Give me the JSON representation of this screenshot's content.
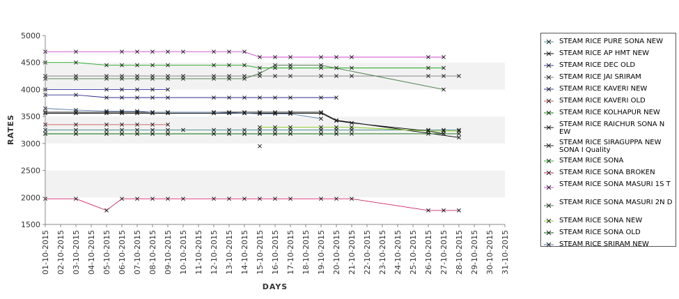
{
  "chart_data": {
    "type": "line",
    "title": "",
    "xlabel": "DAYS",
    "ylabel": "RATES",
    "ylim": [
      1500,
      5000
    ],
    "yticks": [
      "1500",
      "2000",
      "2500",
      "3000",
      "3500",
      "4000",
      "4500",
      "5000"
    ],
    "grid": "alternating horizontal bands",
    "legend": "right",
    "marker": "x",
    "categories": [
      "01-10-2015",
      "02-10-2015",
      "03-10-2015",
      "04-10-2015",
      "05-10-2015",
      "06-10-2015",
      "07-10-2015",
      "08-10-2015",
      "09-10-2015",
      "10-10-2015",
      "11-10-2015",
      "12-10-2015",
      "13-10-2015",
      "14-10-2015",
      "15-10-2015",
      "16-10-2015",
      "17-10-2015",
      "18-10-2015",
      "19-10-2015",
      "20-10-2015",
      "21-10-2015",
      "22-10-2015",
      "23-10-2015",
      "24-10-2015",
      "25-10-2015",
      "26-10-2015",
      "27-10-2015",
      "28-10-2015",
      "29-10-2015",
      "30-10-2015",
      "31-10-2015"
    ],
    "series": [
      {
        "name": " STEAM RICE PURE SONA NEW",
        "color": "#4a8f8f",
        "values": [
          [
            1,
            3250
          ],
          [
            3,
            3250
          ],
          [
            5,
            3250
          ],
          [
            6,
            3250
          ],
          [
            7,
            3250
          ],
          [
            8,
            3250
          ],
          [
            9,
            3250
          ],
          [
            10,
            3250
          ],
          [
            12,
            3250
          ],
          [
            13,
            3250
          ],
          [
            14,
            3250
          ],
          [
            15,
            3250
          ],
          [
            16,
            3250
          ],
          [
            17,
            3250
          ],
          [
            19,
            3250
          ],
          [
            20,
            3250
          ],
          [
            21,
            3250
          ],
          [
            26,
            3250
          ],
          [
            27,
            3250
          ],
          [
            28,
            3250
          ]
        ]
      },
      {
        "name": "STEAM RICE AP HMT NEW",
        "color": "#000000",
        "values": [
          [
            1,
            3580
          ],
          [
            3,
            3580
          ],
          [
            5,
            3580
          ],
          [
            6,
            3580
          ],
          [
            7,
            3580
          ],
          [
            8,
            3580
          ],
          [
            9,
            3580
          ],
          [
            12,
            3580
          ],
          [
            13,
            3580
          ],
          [
            14,
            3580
          ],
          [
            15,
            3580
          ],
          [
            16,
            3580
          ],
          [
            17,
            3580
          ],
          [
            19,
            3580
          ],
          [
            20,
            3430
          ],
          [
            28,
            3110
          ]
        ]
      },
      {
        "name": "STEAM RICE DEC OLD",
        "color": "#3333aa",
        "values": [
          [
            1,
            4000
          ],
          [
            5,
            4000
          ],
          [
            6,
            4000
          ],
          [
            7,
            4000
          ],
          [
            8,
            4000
          ],
          [
            9,
            4000
          ]
        ]
      },
      {
        "name": "STEAM RICE JAI SRIRAM",
        "color": "#777777",
        "values": [
          [
            1,
            4250
          ],
          [
            3,
            4250
          ],
          [
            5,
            4250
          ],
          [
            6,
            4250
          ],
          [
            7,
            4250
          ],
          [
            8,
            4250
          ],
          [
            9,
            4250
          ],
          [
            10,
            4250
          ],
          [
            12,
            4250
          ],
          [
            13,
            4250
          ],
          [
            14,
            4250
          ],
          [
            15,
            4250
          ],
          [
            16,
            4250
          ],
          [
            17,
            4250
          ],
          [
            19,
            4250
          ],
          [
            20,
            4250
          ],
          [
            21,
            4250
          ],
          [
            26,
            4250
          ],
          [
            27,
            4250
          ],
          [
            28,
            4250
          ]
        ]
      },
      {
        "name": "STEAM RICE KAVERI NEW",
        "color": "#2b2b8a",
        "values": [
          [
            1,
            3900
          ],
          [
            3,
            3900
          ],
          [
            5,
            3850
          ],
          [
            6,
            3850
          ],
          [
            7,
            3850
          ],
          [
            8,
            3850
          ],
          [
            9,
            3850
          ],
          [
            12,
            3850
          ],
          [
            13,
            3850
          ],
          [
            14,
            3850
          ],
          [
            15,
            3850
          ],
          [
            16,
            3850
          ],
          [
            17,
            3850
          ],
          [
            19,
            3850
          ],
          [
            20,
            3850
          ]
        ]
      },
      {
        "name": "STEAM RICE KAVERI OLD",
        "color": "#cc5555",
        "values": [
          [
            1,
            3350
          ],
          [
            3,
            3350
          ],
          [
            5,
            3350
          ],
          [
            6,
            3350
          ],
          [
            7,
            3350
          ],
          [
            8,
            3350
          ],
          [
            9,
            3350
          ]
        ]
      },
      {
        "name": "STEAM RICE KOLHAPUR NEW",
        "color": "#008000",
        "values": [
          [
            1,
            3180
          ],
          [
            3,
            3180
          ],
          [
            5,
            3180
          ],
          [
            6,
            3180
          ],
          [
            7,
            3180
          ],
          [
            8,
            3180
          ],
          [
            9,
            3180
          ],
          [
            12,
            3180
          ],
          [
            13,
            3180
          ],
          [
            14,
            3180
          ],
          [
            15,
            3180
          ],
          [
            16,
            3180
          ],
          [
            17,
            3180
          ],
          [
            19,
            3180
          ],
          [
            20,
            3180
          ]
        ]
      },
      {
        "name": "STEAM RICE RAICHUR SONA NEW",
        "color": "#111111",
        "values": [
          [
            1,
            3560
          ],
          [
            3,
            3560
          ],
          [
            5,
            3560
          ],
          [
            6,
            3560
          ],
          [
            7,
            3560
          ],
          [
            8,
            3560
          ],
          [
            9,
            3560
          ],
          [
            12,
            3560
          ],
          [
            13,
            3560
          ],
          [
            14,
            3560
          ],
          [
            15,
            3560
          ],
          [
            16,
            3560
          ],
          [
            17,
            3560
          ],
          [
            19,
            3560
          ],
          [
            20,
            3420
          ],
          [
            21,
            3380
          ],
          [
            26,
            3230
          ],
          [
            27,
            3180
          ]
        ]
      },
      {
        "name": "STEAM RICE SIRAGUPPA NEW SONA I Quality",
        "color": "#222222",
        "values": [
          [
            15,
            2950
          ]
        ]
      },
      {
        "name": "STEAM RICE SONA",
        "color": "#22aa22",
        "values": [
          [
            1,
            4500
          ],
          [
            3,
            4500
          ],
          [
            5,
            4450
          ],
          [
            6,
            4450
          ],
          [
            7,
            4450
          ],
          [
            8,
            4450
          ],
          [
            9,
            4450
          ],
          [
            12,
            4450
          ],
          [
            13,
            4450
          ],
          [
            14,
            4450
          ],
          [
            15,
            4400
          ],
          [
            16,
            4400
          ],
          [
            17,
            4400
          ],
          [
            19,
            4400
          ],
          [
            20,
            4400
          ],
          [
            21,
            4400
          ],
          [
            26,
            4400
          ],
          [
            27,
            4400
          ]
        ]
      },
      {
        "name": "STEAM RICE SONA BROKEN",
        "color": "#cc2266",
        "values": [
          [
            1,
            1975
          ],
          [
            3,
            1975
          ],
          [
            5,
            1760
          ],
          [
            6,
            1975
          ],
          [
            7,
            1975
          ],
          [
            8,
            1975
          ],
          [
            9,
            1975
          ],
          [
            10,
            1975
          ],
          [
            12,
            1975
          ],
          [
            13,
            1975
          ],
          [
            14,
            1975
          ],
          [
            15,
            1975
          ],
          [
            16,
            1975
          ],
          [
            17,
            1975
          ],
          [
            19,
            1975
          ],
          [
            20,
            1975
          ],
          [
            21,
            1975
          ],
          [
            26,
            1760
          ],
          [
            27,
            1760
          ],
          [
            28,
            1760
          ]
        ]
      },
      {
        "name": "STEAM RICE SONA MASURI 1ST",
        "color": "#cc44cc",
        "values": [
          [
            1,
            4700
          ],
          [
            3,
            4700
          ],
          [
            6,
            4700
          ],
          [
            7,
            4700
          ],
          [
            8,
            4700
          ],
          [
            9,
            4700
          ],
          [
            10,
            4700
          ],
          [
            12,
            4700
          ],
          [
            13,
            4700
          ],
          [
            14,
            4700
          ],
          [
            15,
            4600
          ],
          [
            16,
            4600
          ],
          [
            17,
            4600
          ],
          [
            19,
            4600
          ],
          [
            20,
            4600
          ],
          [
            21,
            4600
          ],
          [
            26,
            4600
          ],
          [
            27,
            4600
          ]
        ]
      },
      {
        "name": "STEAM RICE SONA MASURI 2ND",
        "color": "#447744",
        "values": [
          [
            1,
            4200
          ],
          [
            3,
            4200
          ],
          [
            5,
            4200
          ],
          [
            6,
            4200
          ],
          [
            7,
            4200
          ],
          [
            8,
            4200
          ],
          [
            9,
            4200
          ],
          [
            10,
            4200
          ],
          [
            12,
            4200
          ],
          [
            13,
            4200
          ],
          [
            14,
            4200
          ],
          [
            15,
            4300
          ],
          [
            16,
            4450
          ],
          [
            17,
            4450
          ],
          [
            19,
            4450
          ],
          [
            27,
            4000
          ]
        ]
      },
      {
        "name": "STEAM RICE SONA NEW",
        "color": "#88cc22",
        "values": [
          [
            15,
            3300
          ],
          [
            16,
            3300
          ],
          [
            17,
            3300
          ],
          [
            19,
            3300
          ],
          [
            20,
            3300
          ],
          [
            21,
            3300
          ],
          [
            26,
            3230
          ],
          [
            27,
            3230
          ],
          [
            28,
            3230
          ]
        ]
      },
      {
        "name": "STEAM RICE SONA OLD",
        "color": "#006600",
        "values": [
          [
            1,
            3180
          ],
          [
            3,
            3180
          ],
          [
            5,
            3180
          ],
          [
            6,
            3180
          ],
          [
            7,
            3180
          ],
          [
            8,
            3180
          ],
          [
            9,
            3180
          ],
          [
            12,
            3180
          ],
          [
            13,
            3180
          ],
          [
            14,
            3180
          ],
          [
            15,
            3180
          ],
          [
            16,
            3180
          ],
          [
            17,
            3180
          ],
          [
            19,
            3180
          ],
          [
            20,
            3180
          ],
          [
            21,
            3180
          ],
          [
            26,
            3180
          ],
          [
            27,
            3180
          ],
          [
            28,
            3180
          ]
        ]
      },
      {
        "name": "STEAM RICE SRIRAM NEW",
        "color": "#5577aa",
        "values": [
          [
            1,
            3650
          ],
          [
            3,
            3620
          ],
          [
            5,
            3600
          ],
          [
            6,
            3600
          ],
          [
            7,
            3600
          ],
          [
            8,
            3580
          ],
          [
            9,
            3580
          ],
          [
            12,
            3580
          ],
          [
            13,
            3570
          ],
          [
            14,
            3560
          ],
          [
            15,
            3550
          ],
          [
            16,
            3550
          ],
          [
            17,
            3550
          ],
          [
            19,
            3460
          ]
        ]
      }
    ]
  },
  "legend_entries": [
    {
      "label": " STEAM RICE PURE SONA NEW",
      "lines": 1
    },
    {
      "label": "STEAM RICE AP HMT NEW",
      "lines": 1
    },
    {
      "label": "STEAM RICE DEC OLD",
      "lines": 1
    },
    {
      "label": "STEAM RICE JAI SRIRAM",
      "lines": 1
    },
    {
      "label": "STEAM RICE KAVERI NEW",
      "lines": 1
    },
    {
      "label": "STEAM RICE KAVERI OLD",
      "lines": 1
    },
    {
      "label": "STEAM RICE KOLHAPUR NEW",
      "lines": 1
    },
    {
      "label": "STEAM RICE RAICHUR SONA N EW",
      "lines": 2
    },
    {
      "label": "STEAM RICE SIRAGUPPA NEW SONA I Quality",
      "lines": 2
    },
    {
      "label": "STEAM RICE SONA",
      "lines": 1
    },
    {
      "label": "STEAM RICE SONA BROKEN",
      "lines": 1
    },
    {
      "label": "STEAM RICE SONA MASURI 1S T",
      "lines": 2
    },
    {
      "label": "STEAM RICE SONA MASURI 2N D",
      "lines": 2
    },
    {
      "label": "STEAM RICE SONA NEW",
      "lines": 1
    },
    {
      "label": "STEAM RICE SONA OLD",
      "lines": 1
    },
    {
      "label": "STEAM RICE SRIRAM NEW",
      "lines": 1
    }
  ]
}
